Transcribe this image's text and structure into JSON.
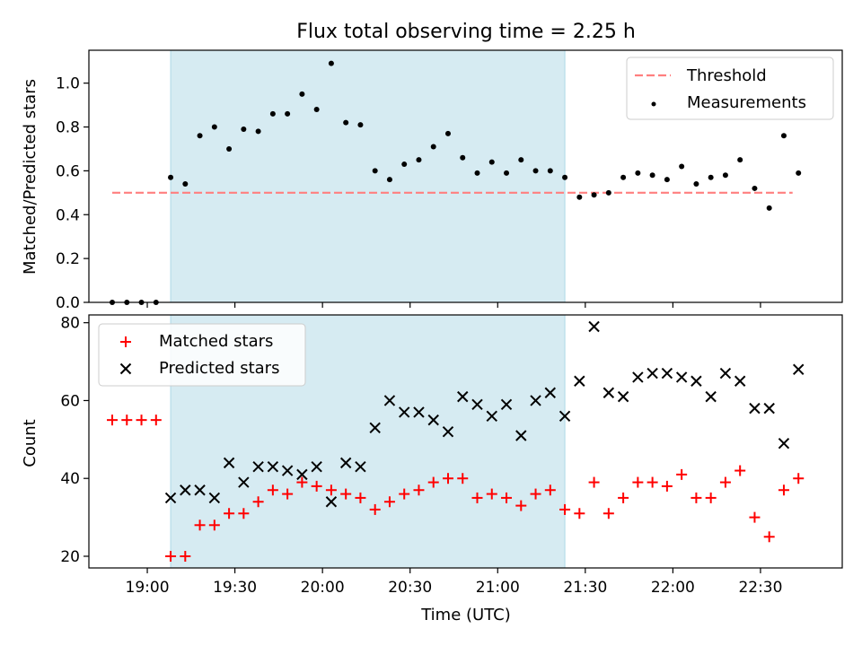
{
  "colors": {
    "threshold": "#ff7f7f",
    "observing_window": "#add8e6",
    "measurements": "#000000",
    "matched": "#ff0000",
    "predicted": "#000000"
  },
  "chart_data": [
    {
      "type": "scatter",
      "title": "Flux total observing time = 2.25 h",
      "xlabel": "",
      "ylabel": "Matched/Predicted stars",
      "xlim": [
        "18:40",
        "22:58"
      ],
      "ylim": [
        0,
        1.15
      ],
      "yticks": [
        "0.0",
        "0.2",
        "0.4",
        "0.6",
        "0.8",
        "1.0"
      ],
      "shaded_interval": [
        "19:08",
        "21:23"
      ],
      "legend": {
        "position": "top-right",
        "entries": [
          "Threshold",
          "Measurements"
        ]
      },
      "threshold": {
        "name": "Threshold",
        "y": 0.5,
        "x": [
          "18:48",
          "22:41"
        ],
        "style": "dashed"
      },
      "series": [
        {
          "name": "Measurements",
          "marker": "dot",
          "x": [
            "18:48",
            "18:53",
            "18:58",
            "19:03",
            "19:08",
            "19:13",
            "19:18",
            "19:23",
            "19:28",
            "19:33",
            "19:38",
            "19:43",
            "19:48",
            "19:53",
            "19:58",
            "20:03",
            "20:08",
            "20:13",
            "20:18",
            "20:23",
            "20:28",
            "20:33",
            "20:38",
            "20:43",
            "20:48",
            "20:53",
            "20:58",
            "21:03",
            "21:08",
            "21:13",
            "21:18",
            "21:23",
            "21:28",
            "21:33",
            "21:38",
            "21:43",
            "21:48",
            "21:53",
            "21:58",
            "22:03",
            "22:08",
            "22:13",
            "22:18",
            "22:23",
            "22:28",
            "22:33",
            "22:38",
            "22:43"
          ],
          "y": [
            0,
            0,
            0,
            0,
            0.57,
            0.54,
            0.76,
            0.8,
            0.7,
            0.79,
            0.78,
            0.86,
            0.86,
            0.95,
            0.88,
            1.09,
            0.82,
            0.81,
            0.6,
            0.56,
            0.63,
            0.65,
            0.71,
            0.77,
            0.66,
            0.59,
            0.64,
            0.59,
            0.65,
            0.6,
            0.6,
            0.57,
            0.48,
            0.49,
            0.5,
            0.57,
            0.59,
            0.58,
            0.56,
            0.62,
            0.54,
            0.57,
            0.58,
            0.65,
            0.52,
            0.43,
            0.76,
            0.59
          ]
        }
      ]
    },
    {
      "type": "scatter",
      "title": "",
      "xlabel": "Time (UTC)",
      "ylabel": "Count",
      "xlim": [
        "18:40",
        "22:58"
      ],
      "ylim": [
        17,
        82
      ],
      "yticks": [
        "20",
        "40",
        "60",
        "80"
      ],
      "xticks": [
        "19:00",
        "19:30",
        "20:00",
        "20:30",
        "21:00",
        "21:30",
        "22:00",
        "22:30"
      ],
      "shaded_interval": [
        "19:08",
        "21:23"
      ],
      "legend": {
        "position": "top-left",
        "entries": [
          "Matched stars",
          "Predicted stars"
        ]
      },
      "series": [
        {
          "name": "Matched stars",
          "marker": "plus",
          "x": [
            "18:48",
            "18:53",
            "18:58",
            "19:03",
            "19:08",
            "19:13",
            "19:18",
            "19:23",
            "19:28",
            "19:33",
            "19:38",
            "19:43",
            "19:48",
            "19:53",
            "19:58",
            "20:03",
            "20:08",
            "20:13",
            "20:18",
            "20:23",
            "20:28",
            "20:33",
            "20:38",
            "20:43",
            "20:48",
            "20:53",
            "20:58",
            "21:03",
            "21:08",
            "21:13",
            "21:18",
            "21:23",
            "21:28",
            "21:33",
            "21:38",
            "21:43",
            "21:48",
            "21:53",
            "21:58",
            "22:03",
            "22:08",
            "22:13",
            "22:18",
            "22:23",
            "22:28",
            "22:33",
            "22:38",
            "22:43"
          ],
          "y": [
            55,
            55,
            55,
            55,
            20,
            20,
            28,
            28,
            31,
            31,
            34,
            37,
            36,
            39,
            38,
            37,
            36,
            35,
            32,
            34,
            36,
            37,
            39,
            40,
            40,
            35,
            36,
            35,
            33,
            36,
            37,
            32,
            31,
            39,
            31,
            35,
            39,
            39,
            38,
            41,
            35,
            35,
            39,
            42,
            30,
            25,
            37,
            40
          ]
        },
        {
          "name": "Predicted stars",
          "marker": "x",
          "x": [
            "19:08",
            "19:13",
            "19:18",
            "19:23",
            "19:28",
            "19:33",
            "19:38",
            "19:43",
            "19:48",
            "19:53",
            "19:58",
            "20:03",
            "20:08",
            "20:13",
            "20:18",
            "20:23",
            "20:28",
            "20:33",
            "20:38",
            "20:43",
            "20:48",
            "20:53",
            "20:58",
            "21:03",
            "21:08",
            "21:13",
            "21:18",
            "21:23",
            "21:28",
            "21:33",
            "21:38",
            "21:43",
            "21:48",
            "21:53",
            "21:58",
            "22:03",
            "22:08",
            "22:13",
            "22:18",
            "22:23",
            "22:28",
            "22:33",
            "22:38",
            "22:43"
          ],
          "y": [
            35,
            37,
            37,
            35,
            44,
            39,
            43,
            43,
            42,
            41,
            43,
            34,
            44,
            43,
            53,
            60,
            57,
            57,
            55,
            52,
            61,
            59,
            56,
            59,
            51,
            60,
            62,
            56,
            65,
            79,
            62,
            61,
            66,
            67,
            67,
            66,
            65,
            61,
            67,
            65,
            58,
            58,
            49,
            68
          ]
        }
      ]
    }
  ]
}
